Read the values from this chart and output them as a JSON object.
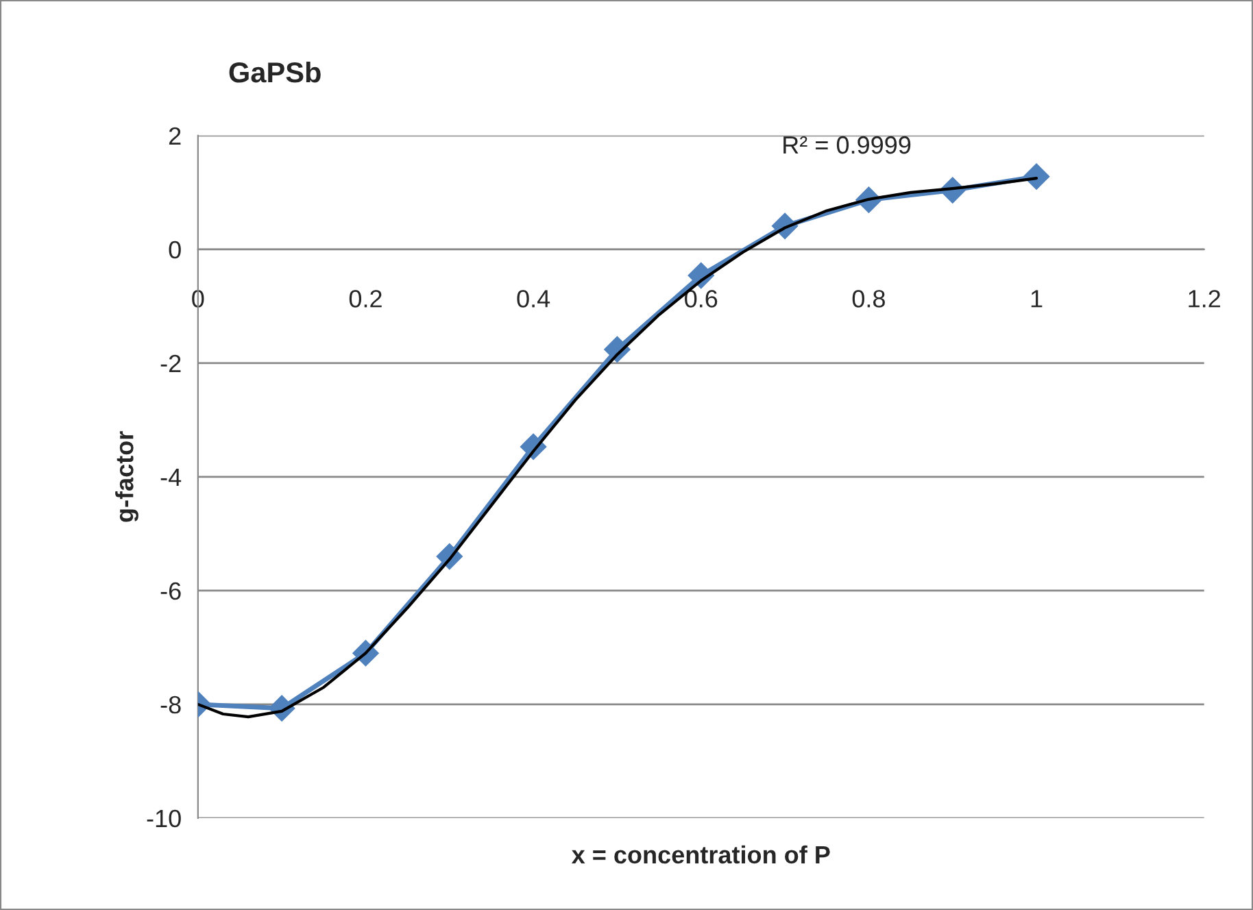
{
  "chart_data": {
    "type": "line",
    "title": "GaPSb",
    "xlabel": "x = concentration of P",
    "ylabel": "g-factor",
    "annotations": [
      "R² = 0.9999"
    ],
    "x": [
      0,
      0.1,
      0.2,
      0.3,
      0.4,
      0.5,
      0.6,
      0.7,
      0.8,
      0.9,
      1.0
    ],
    "series": [
      {
        "color": "#4f81bd",
        "marker": "diamond",
        "values": [
          -8.0,
          -8.07,
          -7.1,
          -5.4,
          -3.47,
          -1.76,
          -0.46,
          0.41,
          0.87,
          1.04,
          1.28
        ]
      },
      {
        "color": "#000000",
        "marker": "none",
        "x": [
          0,
          0.03,
          0.06,
          0.1,
          0.15,
          0.2,
          0.25,
          0.3,
          0.35,
          0.4,
          0.45,
          0.5,
          0.55,
          0.6,
          0.65,
          0.7,
          0.75,
          0.8,
          0.85,
          0.9,
          0.95,
          1.0
        ],
        "values": [
          -8.0,
          -8.17,
          -8.22,
          -8.12,
          -7.7,
          -7.1,
          -6.3,
          -5.45,
          -4.5,
          -3.55,
          -2.65,
          -1.85,
          -1.15,
          -0.55,
          -0.05,
          0.38,
          0.68,
          0.88,
          1.0,
          1.07,
          1.15,
          1.25
        ]
      }
    ],
    "xlim": [
      0,
      1.2
    ],
    "xticks": [
      0,
      0.2,
      0.4,
      0.6,
      0.8,
      1,
      1.2
    ],
    "ylim": [
      -10,
      2
    ],
    "yticks": [
      -10,
      -8,
      -6,
      -4,
      -2,
      0,
      2
    ],
    "grid": "y",
    "legend": false
  }
}
